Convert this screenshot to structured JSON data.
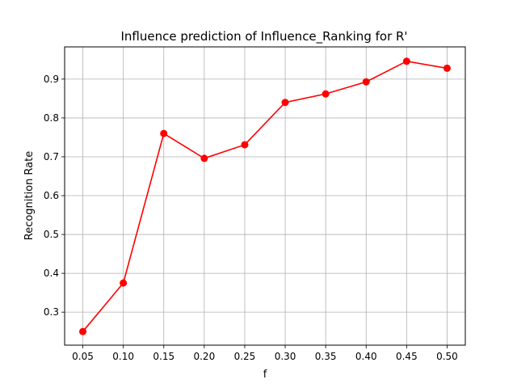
{
  "chart_data": {
    "type": "line",
    "title": "Influence prediction of Influence_Ranking for R'",
    "xlabel": "f",
    "ylabel": "Recognition Rate",
    "x": [
      0.05,
      0.1,
      0.15,
      0.2,
      0.25,
      0.3,
      0.35,
      0.4,
      0.45,
      0.5
    ],
    "x_tick_labels": [
      "0.05",
      "0.10",
      "0.15",
      "0.20",
      "0.25",
      "0.30",
      "0.35",
      "0.40",
      "0.45",
      "0.50"
    ],
    "y_ticks": [
      0.3,
      0.4,
      0.5,
      0.6,
      0.7,
      0.8,
      0.9
    ],
    "y_tick_labels": [
      "0.3",
      "0.4",
      "0.5",
      "0.6",
      "0.7",
      "0.8",
      "0.9"
    ],
    "xlim": [
      0.0275,
      0.5225
    ],
    "ylim": [
      0.215,
      0.983
    ],
    "grid": true,
    "series": [
      {
        "color": "#ff0000",
        "marker": "circle",
        "values": [
          0.25,
          0.375,
          0.76,
          0.696,
          0.731,
          0.84,
          0.862,
          0.893,
          0.946,
          0.928
        ]
      }
    ]
  }
}
